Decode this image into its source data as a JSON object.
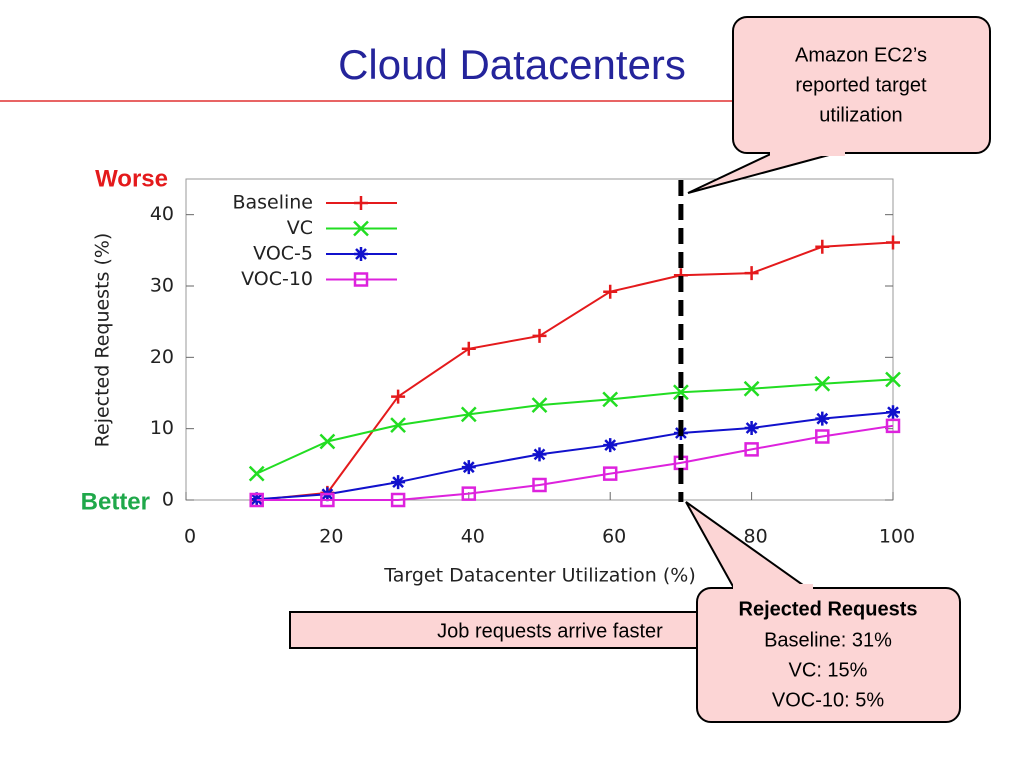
{
  "title": "Cloud Datacenters",
  "callout_top": [
    "Amazon EC2’s",
    "reported target",
    "utilization"
  ],
  "callout_bottom": {
    "heading": "Rejected Requests",
    "lines": [
      "Baseline: 31%",
      "VC: 15%",
      "VOC-10: 5%"
    ]
  },
  "note_box": "Job requests arrive faster",
  "worse_label": "Worse",
  "better_label": "Better",
  "chart_data": {
    "type": "line",
    "x_label": "Target Datacenter Utilization (%)",
    "y_label": "Rejected Requests (%)",
    "x": [
      10,
      20,
      30,
      40,
      50,
      60,
      70,
      80,
      90,
      100
    ],
    "series": [
      {
        "name": "Baseline",
        "color": "#e41a1c",
        "marker": "plus",
        "values": [
          0,
          1,
          14.5,
          21.2,
          23,
          29.2,
          31.5,
          31.8,
          35.5,
          36.1
        ]
      },
      {
        "name": "VC",
        "color": "#22dd22",
        "marker": "cross",
        "values": [
          3.7,
          8.2,
          10.5,
          12,
          13.3,
          14.1,
          15.1,
          15.6,
          16.3,
          16.9
        ]
      },
      {
        "name": "VOC-5",
        "color": "#1111cc",
        "marker": "star",
        "values": [
          0.1,
          0.8,
          2.5,
          4.6,
          6.4,
          7.7,
          9.4,
          10.1,
          11.4,
          12.3
        ]
      },
      {
        "name": "VOC-10",
        "color": "#dd22dd",
        "marker": "square",
        "values": [
          0,
          0,
          0,
          0.9,
          2.1,
          3.7,
          5.2,
          7.1,
          8.9,
          10.4
        ]
      }
    ],
    "xlim": [
      0,
      100
    ],
    "xticks": [
      0,
      20,
      40,
      60,
      80,
      100
    ],
    "ylim": [
      0,
      45
    ],
    "yticks": [
      0,
      10,
      20,
      30,
      40
    ],
    "reference_line_x": 70,
    "legend": "upper-left"
  }
}
